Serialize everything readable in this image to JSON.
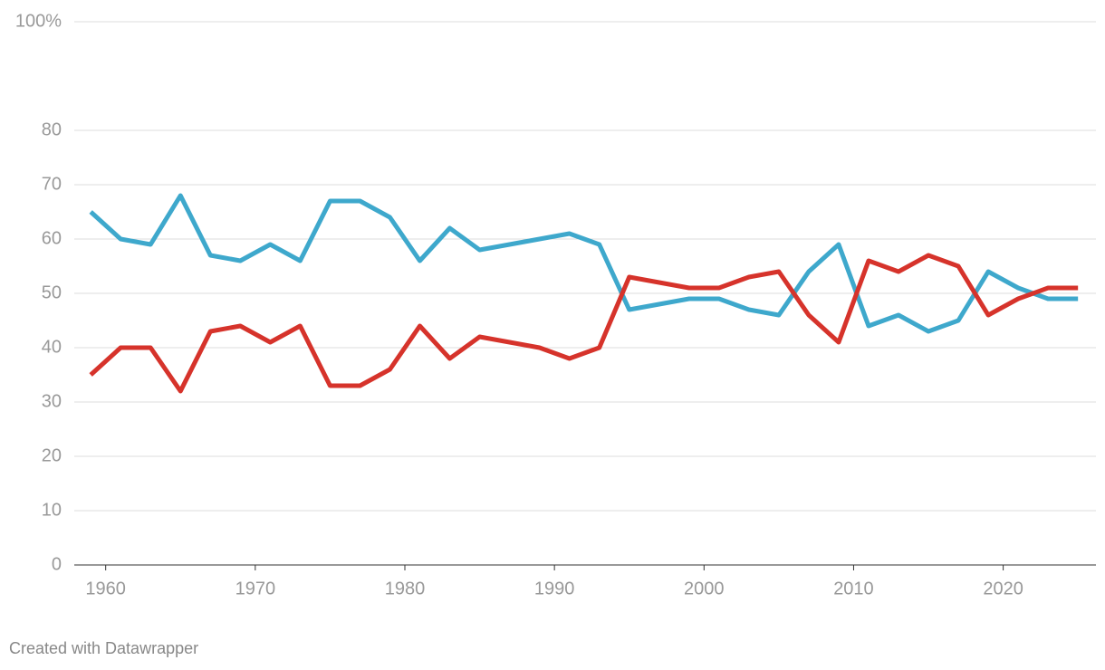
{
  "chart_data": {
    "type": "line",
    "x": [
      1959,
      1961,
      1963,
      1965,
      1967,
      1969,
      1971,
      1973,
      1975,
      1977,
      1979,
      1981,
      1983,
      1985,
      1987,
      1989,
      1991,
      1993,
      1995,
      1997,
      1999,
      2001,
      2003,
      2005,
      2007,
      2009,
      2011,
      2013,
      2015,
      2017,
      2019,
      2021,
      2023,
      2025
    ],
    "series": [
      {
        "color": "#3ea8cc",
        "values": [
          65,
          60,
          59,
          68,
          57,
          56,
          59,
          56,
          67,
          67,
          64,
          56,
          62,
          58,
          59,
          60,
          61,
          59,
          47,
          48,
          49,
          49,
          47,
          46,
          54,
          59,
          44,
          46,
          43,
          45,
          54,
          51,
          49,
          49
        ]
      },
      {
        "color": "#d6332b",
        "values": [
          35,
          40,
          40,
          32,
          43,
          44,
          41,
          44,
          33,
          33,
          36,
          44,
          38,
          42,
          41,
          40,
          38,
          40,
          53,
          52,
          51,
          51,
          53,
          54,
          46,
          41,
          56,
          54,
          57,
          55,
          46,
          49,
          51,
          51
        ]
      }
    ],
    "xlim": [
      1957.9,
      2026.2
    ],
    "xticks": [
      1960,
      1970,
      1980,
      1990,
      2000,
      2010,
      2020
    ],
    "ylim": [
      0,
      100
    ],
    "yticks": [
      0,
      10,
      20,
      30,
      40,
      50,
      60,
      70,
      80,
      {
        "value": 100,
        "label": "100%"
      }
    ],
    "grid": true,
    "footer": "Created with Datawrapper"
  }
}
